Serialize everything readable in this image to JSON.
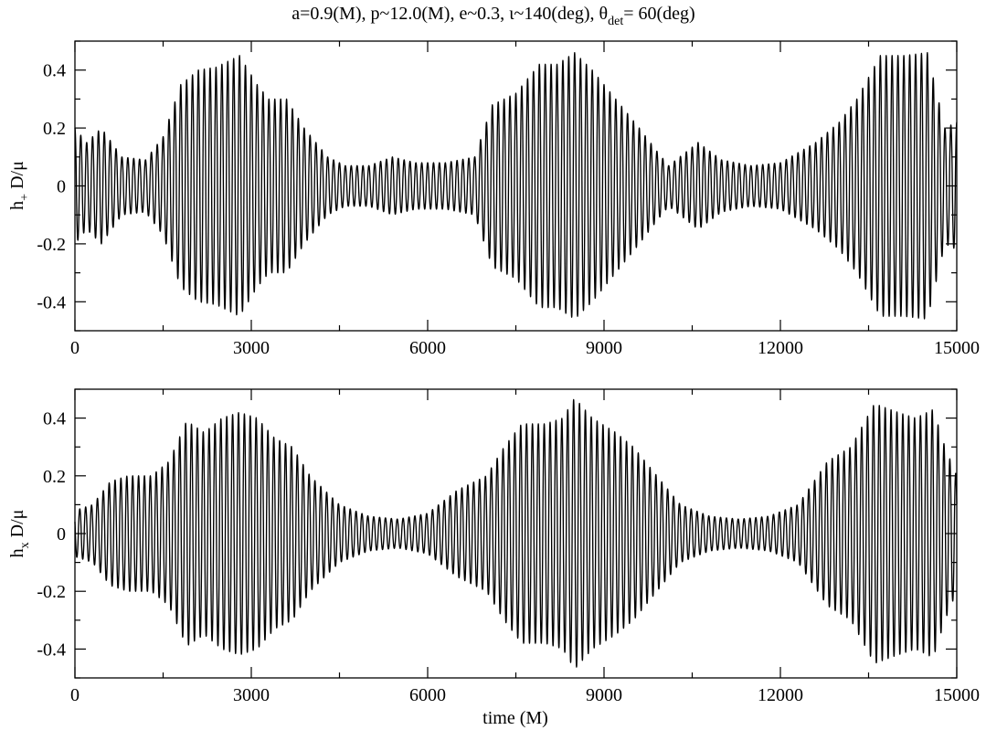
{
  "chart_data": [
    {
      "type": "line",
      "id": "hplus",
      "title_parts": {
        "main": "a=0.9(M), p~12.0(M), e~0.3, ι~140(deg), θ",
        "sub": "det",
        "tail": "= 60(deg)"
      },
      "ylabel_parts": {
        "main": "h",
        "sub": "+",
        "tail": " D/μ"
      },
      "xlabel": "",
      "xlim": [
        0,
        15000
      ],
      "ylim": [
        -0.5,
        0.5
      ],
      "xticks": [
        0,
        3000,
        6000,
        9000,
        12000,
        15000
      ],
      "yticks": [
        -0.4,
        -0.2,
        0,
        0.2,
        0.4
      ],
      "xtick_labels": [
        "0",
        "3000",
        "6000",
        "9000",
        "12000",
        "15000"
      ],
      "ytick_labels": [
        "-0.4",
        "-0.2",
        "0",
        "0.2",
        "0.4"
      ],
      "grid": false,
      "series": [
        {
          "period": 100,
          "envelope_points": [
            [
              0,
              0.2
            ],
            [
              200,
              0.15
            ],
            [
              450,
              0.2
            ],
            [
              800,
              0.1
            ],
            [
              1200,
              0.09
            ],
            [
              1500,
              0.17
            ],
            [
              1800,
              0.35
            ],
            [
              2100,
              0.4
            ],
            [
              2400,
              0.41
            ],
            [
              2800,
              0.45
            ],
            [
              3100,
              0.35
            ],
            [
              3300,
              0.3
            ],
            [
              3600,
              0.3
            ],
            [
              3900,
              0.2
            ],
            [
              4300,
              0.1
            ],
            [
              4600,
              0.07
            ],
            [
              5000,
              0.07
            ],
            [
              5400,
              0.1
            ],
            [
              5800,
              0.08
            ],
            [
              6300,
              0.08
            ],
            [
              6800,
              0.1
            ],
            [
              7100,
              0.28
            ],
            [
              7500,
              0.32
            ],
            [
              7900,
              0.42
            ],
            [
              8200,
              0.42
            ],
            [
              8500,
              0.46
            ],
            [
              8800,
              0.4
            ],
            [
              9200,
              0.3
            ],
            [
              9600,
              0.2
            ],
            [
              9900,
              0.12
            ],
            [
              10100,
              0.07
            ],
            [
              10600,
              0.15
            ],
            [
              11000,
              0.09
            ],
            [
              11500,
              0.07
            ],
            [
              12000,
              0.08
            ],
            [
              12600,
              0.15
            ],
            [
              13000,
              0.22
            ],
            [
              13300,
              0.3
            ],
            [
              13700,
              0.45
            ],
            [
              14100,
              0.45
            ],
            [
              14500,
              0.46
            ],
            [
              14800,
              0.2
            ],
            [
              15000,
              0.22
            ]
          ]
        }
      ]
    },
    {
      "type": "line",
      "id": "hcross",
      "title_parts": null,
      "ylabel_parts": {
        "main": "h",
        "sub": "x",
        "tail": " D/μ"
      },
      "xlabel": "time (M)",
      "xlim": [
        0,
        15000
      ],
      "ylim": [
        -0.5,
        0.5
      ],
      "xticks": [
        0,
        3000,
        6000,
        9000,
        12000,
        15000
      ],
      "yticks": [
        -0.4,
        -0.2,
        0,
        0.2,
        0.4
      ],
      "xtick_labels": [
        "0",
        "3000",
        "6000",
        "9000",
        "12000",
        "15000"
      ],
      "ytick_labels": [
        "-0.4",
        "-0.2",
        "0",
        "0.2",
        "0.4"
      ],
      "grid": false,
      "series": [
        {
          "period": 100,
          "envelope_points": [
            [
              0,
              0.08
            ],
            [
              300,
              0.1
            ],
            [
              600,
              0.18
            ],
            [
              900,
              0.2
            ],
            [
              1300,
              0.2
            ],
            [
              1600,
              0.25
            ],
            [
              1900,
              0.39
            ],
            [
              2200,
              0.35
            ],
            [
              2500,
              0.4
            ],
            [
              2800,
              0.42
            ],
            [
              3100,
              0.4
            ],
            [
              3400,
              0.33
            ],
            [
              3700,
              0.3
            ],
            [
              4000,
              0.2
            ],
            [
              4500,
              0.1
            ],
            [
              5000,
              0.06
            ],
            [
              5500,
              0.05
            ],
            [
              6000,
              0.07
            ],
            [
              6500,
              0.15
            ],
            [
              7000,
              0.2
            ],
            [
              7300,
              0.3
            ],
            [
              7600,
              0.38
            ],
            [
              8000,
              0.38
            ],
            [
              8300,
              0.4
            ],
            [
              8500,
              0.47
            ],
            [
              8800,
              0.4
            ],
            [
              9200,
              0.35
            ],
            [
              9500,
              0.3
            ],
            [
              9900,
              0.2
            ],
            [
              10300,
              0.1
            ],
            [
              10800,
              0.06
            ],
            [
              11300,
              0.05
            ],
            [
              11800,
              0.06
            ],
            [
              12300,
              0.1
            ],
            [
              12800,
              0.25
            ],
            [
              13200,
              0.3
            ],
            [
              13600,
              0.45
            ],
            [
              14000,
              0.42
            ],
            [
              14300,
              0.4
            ],
            [
              14600,
              0.43
            ],
            [
              14800,
              0.3
            ],
            [
              15000,
              0.2
            ]
          ]
        }
      ]
    }
  ]
}
